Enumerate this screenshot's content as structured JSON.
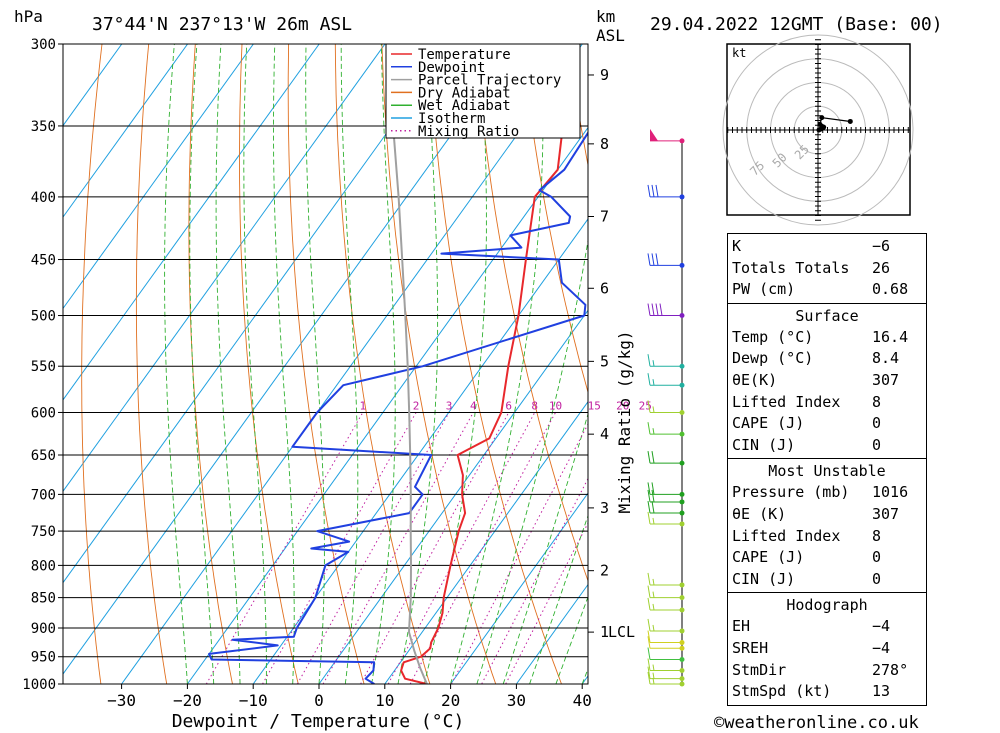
{
  "header": {
    "hpa_unit": "hPa",
    "location": "37°44'N  237°13'W  26m  ASL",
    "km_unit": "km",
    "asl_unit": "ASL",
    "datetime": "29.04.2022  12GMT  (Base: 00)"
  },
  "footer": {
    "copyright": "©weatheronline.co.uk"
  },
  "chart_data": {
    "type": "line",
    "title": "",
    "xlabel": "Dewpoint / Temperature (°C)",
    "ylabel": "hPa",
    "y2label": "Mixing Ratio (g/kg)",
    "x_range": [
      -40,
      40
    ],
    "p_range": [
      1000,
      300
    ],
    "y_scale": "log",
    "x_ticks": [
      -30,
      -20,
      -10,
      0,
      10,
      20,
      30,
      40
    ],
    "x_tick_labels": [
      "−30",
      "−20",
      "−10",
      "0",
      "10",
      "20",
      "30",
      "40"
    ],
    "p_levels": [
      300,
      350,
      400,
      450,
      500,
      550,
      600,
      650,
      700,
      750,
      800,
      850,
      900,
      950,
      1000
    ],
    "p_labels": [
      "300",
      "350",
      "400",
      "450",
      "500",
      "550",
      "600",
      "650",
      "700",
      "750",
      "800",
      "850",
      "900",
      "950",
      "1000"
    ],
    "km_ticks": [
      {
        "label": "9",
        "p": 318
      },
      {
        "label": "8",
        "p": 362
      },
      {
        "label": "7",
        "p": 415
      },
      {
        "label": "6",
        "p": 475
      },
      {
        "label": "5",
        "p": 545
      },
      {
        "label": "4",
        "p": 625
      },
      {
        "label": "3",
        "p": 718
      },
      {
        "label": "2",
        "p": 808
      },
      {
        "label": "1",
        "p": 907
      }
    ],
    "lcl_label": "LCL",
    "lcl_p": 907,
    "mixing_ratio_labels": [
      "1",
      "2",
      "3",
      "4",
      "6",
      "8",
      "10",
      "15",
      "20",
      "25"
    ],
    "legend": {
      "position": "top-right",
      "entries": [
        {
          "name": "Temperature",
          "color": "#e8282c"
        },
        {
          "name": "Dewpoint",
          "color": "#2040e0"
        },
        {
          "name": "Parcel Trajectory",
          "color": "#a0a0a0"
        },
        {
          "name": "Dry Adiabat",
          "color": "#e07020"
        },
        {
          "name": "Wet Adiabat",
          "color": "#30b030"
        },
        {
          "name": "Isotherm",
          "color": "#20a0e0"
        },
        {
          "name": "Mixing Ratio",
          "color": "#c020a0"
        }
      ]
    },
    "series": [
      {
        "name": "Temperature",
        "color": "#e8282c",
        "points": [
          [
            1000,
            16.4
          ],
          [
            990,
            12.5
          ],
          [
            975,
            11.0
          ],
          [
            960,
            10.5
          ],
          [
            950,
            12.5
          ],
          [
            935,
            13.0
          ],
          [
            925,
            12.5
          ],
          [
            900,
            12.0
          ],
          [
            875,
            11.0
          ],
          [
            850,
            9.5
          ],
          [
            800,
            7.0
          ],
          [
            750,
            4.5
          ],
          [
            725,
            3.5
          ],
          [
            700,
            1.0
          ],
          [
            675,
            -1.0
          ],
          [
            650,
            -4.0
          ],
          [
            630,
            -1.0
          ],
          [
            600,
            -2.0
          ],
          [
            550,
            -6.0
          ],
          [
            500,
            -10.0
          ],
          [
            450,
            -15.0
          ],
          [
            400,
            -20.5
          ],
          [
            380,
            -20.0
          ],
          [
            350,
            -24.0
          ],
          [
            300,
            -33.0
          ]
        ]
      },
      {
        "name": "Dewpoint",
        "color": "#2040e0",
        "points": [
          [
            1000,
            8.4
          ],
          [
            990,
            6.5
          ],
          [
            975,
            6.8
          ],
          [
            960,
            6.0
          ],
          [
            955,
            -19.0
          ],
          [
            945,
            -20.0
          ],
          [
            930,
            -10.5
          ],
          [
            920,
            -18.0
          ],
          [
            915,
            -9.0
          ],
          [
            900,
            -9.5
          ],
          [
            850,
            -10.0
          ],
          [
            800,
            -12.0
          ],
          [
            780,
            -10.0
          ],
          [
            775,
            -16.0
          ],
          [
            765,
            -11.0
          ],
          [
            750,
            -17.0
          ],
          [
            725,
            -5.0
          ],
          [
            700,
            -5.0
          ],
          [
            690,
            -7.0
          ],
          [
            650,
            -8.0
          ],
          [
            640,
            -30.0
          ],
          [
            600,
            -30.0
          ],
          [
            570,
            -29.0
          ],
          [
            550,
            -19.0
          ],
          [
            500,
            0.0
          ],
          [
            490,
            -1.0
          ],
          [
            470,
            -7.0
          ],
          [
            450,
            -10.0
          ],
          [
            445,
            -28.5
          ],
          [
            440,
            -17.0
          ],
          [
            430,
            -20.0
          ],
          [
            420,
            -12.5
          ],
          [
            415,
            -13.0
          ],
          [
            400,
            -18.0
          ],
          [
            395,
            -20.5
          ],
          [
            380,
            -19.0
          ],
          [
            350,
            -19.5
          ],
          [
            330,
            -20.5
          ],
          [
            300,
            -13.0
          ]
        ]
      },
      {
        "name": "Parcel Trajectory",
        "color": "#a0a0a0",
        "points": [
          [
            1000,
            16.4
          ],
          [
            970,
            13.6
          ],
          [
            940,
            10.9
          ],
          [
            907,
            8.0
          ],
          [
            850,
            4.5
          ],
          [
            800,
            1.0
          ],
          [
            750,
            -2.8
          ],
          [
            700,
            -6.8
          ],
          [
            650,
            -11.2
          ],
          [
            600,
            -16.0
          ],
          [
            550,
            -21.3
          ],
          [
            500,
            -27.2
          ],
          [
            450,
            -33.8
          ],
          [
            400,
            -41.2
          ],
          [
            350,
            -49.8
          ],
          [
            300,
            -59.5
          ]
        ]
      }
    ],
    "wind_barbs": [
      {
        "p": 360,
        "speed_kt": 50,
        "color": "#e0207a"
      },
      {
        "p": 400,
        "speed_kt": 30,
        "color": "#2040e0"
      },
      {
        "p": 455,
        "speed_kt": 30,
        "color": "#2040e0"
      },
      {
        "p": 500,
        "speed_kt": 40,
        "color": "#8020c0"
      },
      {
        "p": 550,
        "speed_kt": 15,
        "color": "#20b0a0"
      },
      {
        "p": 570,
        "speed_kt": 15,
        "color": "#20b0a0"
      },
      {
        "p": 600,
        "speed_kt": 15,
        "color": "#a0d030"
      },
      {
        "p": 625,
        "speed_kt": 15,
        "color": "#50c030"
      },
      {
        "p": 660,
        "speed_kt": 20,
        "color": "#20a020"
      },
      {
        "p": 700,
        "speed_kt": 20,
        "color": "#20a020"
      },
      {
        "p": 710,
        "speed_kt": 20,
        "color": "#20a020"
      },
      {
        "p": 725,
        "speed_kt": 20,
        "color": "#20a020"
      },
      {
        "p": 740,
        "speed_kt": 15,
        "color": "#a0d030"
      },
      {
        "p": 830,
        "speed_kt": 15,
        "color": "#a0d030"
      },
      {
        "p": 850,
        "speed_kt": 15,
        "color": "#a0d030"
      },
      {
        "p": 870,
        "speed_kt": 15,
        "color": "#a0d030"
      },
      {
        "p": 905,
        "speed_kt": 15,
        "color": "#a0d030"
      },
      {
        "p": 925,
        "speed_kt": 10,
        "color": "#d0d020"
      },
      {
        "p": 935,
        "speed_kt": 10,
        "color": "#d0d020"
      },
      {
        "p": 955,
        "speed_kt": 10,
        "color": "#40c040"
      },
      {
        "p": 975,
        "speed_kt": 15,
        "color": "#a0d030"
      },
      {
        "p": 990,
        "speed_kt": 15,
        "color": "#a0d030"
      },
      {
        "p": 1000,
        "speed_kt": 15,
        "color": "#a0d030"
      }
    ],
    "hodograph": {
      "unit_label": "kt",
      "ring_labels": [
        "25",
        "50",
        "75"
      ],
      "points_kt": [
        [
          34,
          9
        ],
        [
          4,
          13
        ],
        [
          2,
          6
        ],
        [
          4,
          4
        ],
        [
          3,
          1
        ],
        [
          6,
          3
        ],
        [
          5,
          2
        ],
        [
          1,
          0
        ]
      ]
    }
  },
  "indices": {
    "basic": [
      {
        "label": "K",
        "value": "−6"
      },
      {
        "label": "Totals Totals",
        "value": "26"
      },
      {
        "label": "PW (cm)",
        "value": "0.68"
      }
    ],
    "surface": {
      "title": "Surface",
      "rows": [
        {
          "label": "Temp (°C)",
          "value": "16.4"
        },
        {
          "label": "Dewp (°C)",
          "value": "8.4"
        },
        {
          "label": "θE(K)",
          "value": "307"
        },
        {
          "label": "Lifted Index",
          "value": "8"
        },
        {
          "label": "CAPE (J)",
          "value": "0"
        },
        {
          "label": "CIN (J)",
          "value": "0"
        }
      ]
    },
    "most_unstable": {
      "title": "Most Unstable",
      "rows": [
        {
          "label": "Pressure (mb)",
          "value": "1016"
        },
        {
          "label": "θE (K)",
          "value": "307"
        },
        {
          "label": "Lifted Index",
          "value": "8"
        },
        {
          "label": "CAPE (J)",
          "value": "0"
        },
        {
          "label": "CIN (J)",
          "value": "0"
        }
      ]
    },
    "hodograph": {
      "title": "Hodograph",
      "rows": [
        {
          "label": "EH",
          "value": "−4"
        },
        {
          "label": "SREH",
          "value": "−4"
        },
        {
          "label": "StmDir",
          "value": "278°"
        },
        {
          "label": "StmSpd (kt)",
          "value": "13"
        }
      ]
    }
  }
}
